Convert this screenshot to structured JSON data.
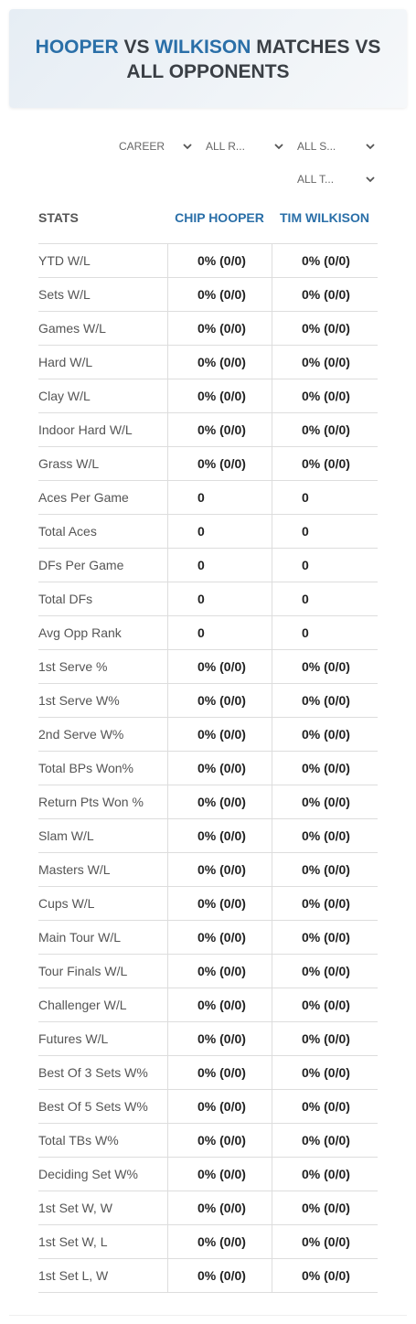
{
  "header": {
    "title": {
      "player1": "HOOPER",
      "vs": "VS",
      "player2": "WILKISON",
      "rest": "MATCHES VS ALL OPPONENTS"
    }
  },
  "filters": [
    "CAREER",
    "ALL R...",
    "ALL S...",
    "ALL T..."
  ],
  "table": {
    "columns": [
      "STATS",
      "CHIP HOOPER",
      "TIM WILKISON"
    ],
    "rows": [
      [
        "YTD W/L",
        "0% (0/0)",
        "0% (0/0)"
      ],
      [
        "Sets W/L",
        "0% (0/0)",
        "0% (0/0)"
      ],
      [
        "Games W/L",
        "0% (0/0)",
        "0% (0/0)"
      ],
      [
        "Hard W/L",
        "0% (0/0)",
        "0% (0/0)"
      ],
      [
        "Clay W/L",
        "0% (0/0)",
        "0% (0/0)"
      ],
      [
        "Indoor Hard W/L",
        "0% (0/0)",
        "0% (0/0)"
      ],
      [
        "Grass W/L",
        "0% (0/0)",
        "0% (0/0)"
      ],
      [
        "Aces Per Game",
        0,
        0
      ],
      [
        "Total Aces",
        0,
        0
      ],
      [
        "DFs Per Game",
        0,
        0
      ],
      [
        "Total DFs",
        0,
        0
      ],
      [
        "Avg Opp Rank",
        0,
        0
      ],
      [
        "1st Serve %",
        "0% (0/0)",
        "0% (0/0)"
      ],
      [
        "1st Serve W%",
        "0% (0/0)",
        "0% (0/0)"
      ],
      [
        "2nd Serve W%",
        "0% (0/0)",
        "0% (0/0)"
      ],
      [
        "Total BPs Won%",
        "0% (0/0)",
        "0% (0/0)"
      ],
      [
        "Return Pts Won %",
        "0% (0/0)",
        "0% (0/0)"
      ],
      [
        "Slam W/L",
        "0% (0/0)",
        "0% (0/0)"
      ],
      [
        "Masters W/L",
        "0% (0/0)",
        "0% (0/0)"
      ],
      [
        "Cups W/L",
        "0% (0/0)",
        "0% (0/0)"
      ],
      [
        "Main Tour W/L",
        "0% (0/0)",
        "0% (0/0)"
      ],
      [
        "Tour Finals W/L",
        "0% (0/0)",
        "0% (0/0)"
      ],
      [
        "Challenger W/L",
        "0% (0/0)",
        "0% (0/0)"
      ],
      [
        "Futures W/L",
        "0% (0/0)",
        "0% (0/0)"
      ],
      [
        "Best Of 3 Sets W%",
        "0% (0/0)",
        "0% (0/0)"
      ],
      [
        "Best Of 5 Sets W%",
        "0% (0/0)",
        "0% (0/0)"
      ],
      [
        "Total TBs W%",
        "0% (0/0)",
        "0% (0/0)"
      ],
      [
        "Deciding Set W%",
        "0% (0/0)",
        "0% (0/0)"
      ],
      [
        "1st Set W, W",
        "0% (0/0)",
        "0% (0/0)"
      ],
      [
        "1st Set W, L",
        "0% (0/0)",
        "0% (0/0)"
      ],
      [
        "1st Set L, W",
        "0% (0/0)",
        "0% (0/0)"
      ]
    ]
  }
}
